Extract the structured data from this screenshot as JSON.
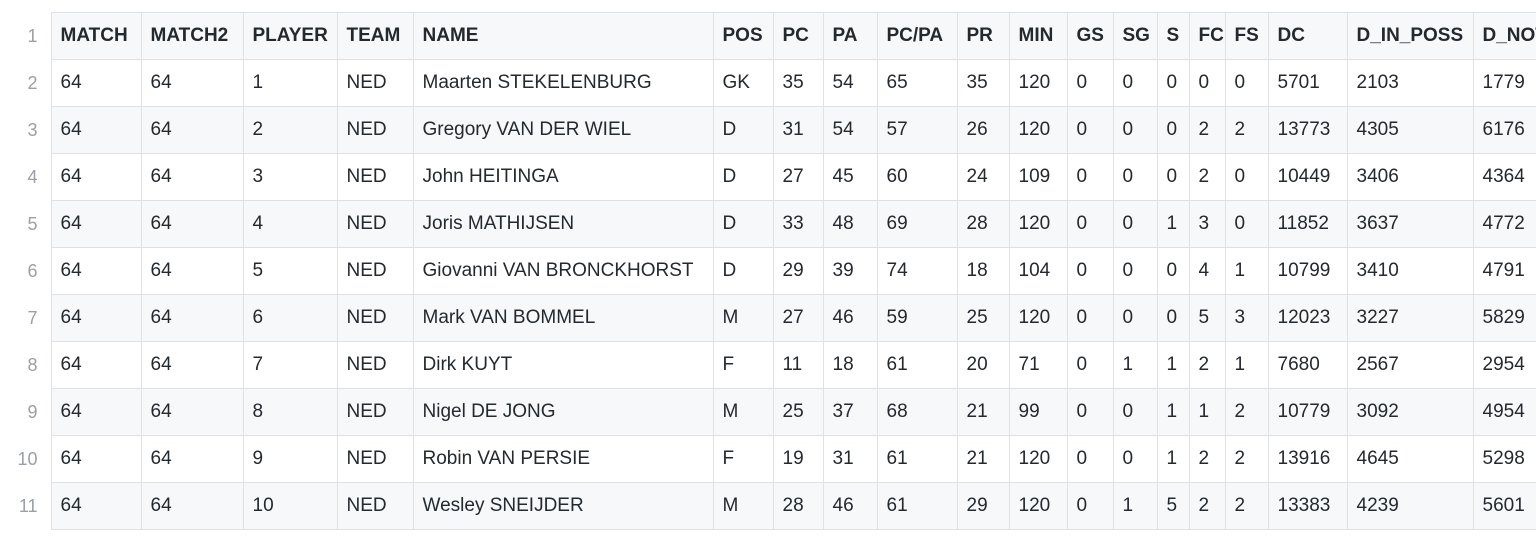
{
  "table": {
    "line_numbers": [
      "1",
      "2",
      "3",
      "4",
      "5",
      "6",
      "7",
      "8",
      "9",
      "10",
      "11"
    ],
    "columns": [
      "MATCH",
      "MATCH2",
      "PLAYER",
      "TEAM",
      "NAME",
      "POS",
      "PC",
      "PA",
      "PC/PA",
      "PR",
      "MIN",
      "GS",
      "SG",
      "S",
      "FC",
      "FS",
      "DC",
      "D_IN_POSS",
      "D_NOT_IN_POSS"
    ],
    "rows": [
      [
        "64",
        "64",
        "1",
        "NED",
        "Maarten STEKELENBURG",
        "GK",
        "35",
        "54",
        "65",
        "35",
        "120",
        "0",
        "0",
        "0",
        "0",
        "0",
        "5701",
        "2103",
        "1779"
      ],
      [
        "64",
        "64",
        "2",
        "NED",
        "Gregory VAN DER WIEL",
        "D",
        "31",
        "54",
        "57",
        "26",
        "120",
        "0",
        "0",
        "0",
        "2",
        "2",
        "13773",
        "4305",
        "6176"
      ],
      [
        "64",
        "64",
        "3",
        "NED",
        "John HEITINGA",
        "D",
        "27",
        "45",
        "60",
        "24",
        "109",
        "0",
        "0",
        "0",
        "2",
        "0",
        "10449",
        "3406",
        "4364"
      ],
      [
        "64",
        "64",
        "4",
        "NED",
        "Joris MATHIJSEN",
        "D",
        "33",
        "48",
        "69",
        "28",
        "120",
        "0",
        "0",
        "1",
        "3",
        "0",
        "11852",
        "3637",
        "4772"
      ],
      [
        "64",
        "64",
        "5",
        "NED",
        "Giovanni VAN BRONCKHORST",
        "D",
        "29",
        "39",
        "74",
        "18",
        "104",
        "0",
        "0",
        "0",
        "4",
        "1",
        "10799",
        "3410",
        "4791"
      ],
      [
        "64",
        "64",
        "6",
        "NED",
        "Mark VAN BOMMEL",
        "M",
        "27",
        "46",
        "59",
        "25",
        "120",
        "0",
        "0",
        "0",
        "5",
        "3",
        "12023",
        "3227",
        "5829"
      ],
      [
        "64",
        "64",
        "7",
        "NED",
        "Dirk KUYT",
        "F",
        "11",
        "18",
        "61",
        "20",
        "71",
        "0",
        "1",
        "1",
        "2",
        "1",
        "7680",
        "2567",
        "2954"
      ],
      [
        "64",
        "64",
        "8",
        "NED",
        "Nigel DE JONG",
        "M",
        "25",
        "37",
        "68",
        "21",
        "99",
        "0",
        "0",
        "1",
        "1",
        "2",
        "10779",
        "3092",
        "4954"
      ],
      [
        "64",
        "64",
        "9",
        "NED",
        "Robin VAN PERSIE",
        "F",
        "19",
        "31",
        "61",
        "21",
        "120",
        "0",
        "0",
        "1",
        "2",
        "2",
        "13916",
        "4645",
        "5298"
      ],
      [
        "64",
        "64",
        "10",
        "NED",
        "Wesley SNEIJDER",
        "M",
        "28",
        "46",
        "61",
        "29",
        "120",
        "0",
        "1",
        "5",
        "2",
        "2",
        "13383",
        "4239",
        "5601"
      ]
    ]
  }
}
